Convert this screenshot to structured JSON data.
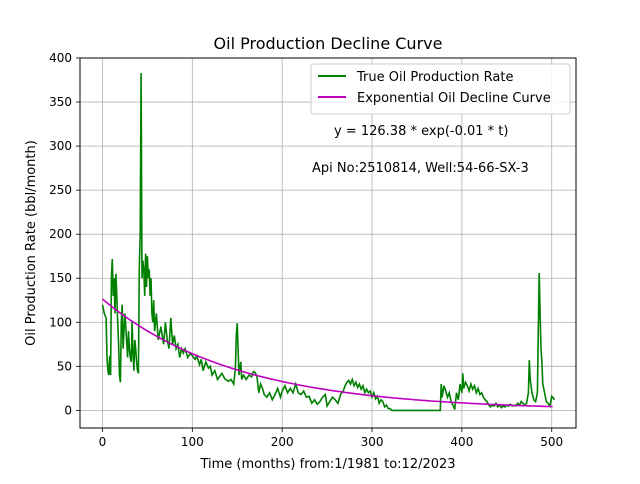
{
  "chart_data": {
    "type": "line",
    "title": "Oil Production Decline Curve",
    "xlabel": "Time (months) from:1/1981 to:12/2023",
    "ylabel": "Oil Production Rate (bbl/month)",
    "xlim": [
      -25,
      527
    ],
    "ylim": [
      -20,
      400
    ],
    "xticks": [
      0,
      100,
      200,
      300,
      400,
      500
    ],
    "yticks": [
      0,
      50,
      100,
      150,
      200,
      250,
      300,
      350,
      400
    ],
    "grid": true,
    "legend_position": "top-right",
    "annotations": {
      "equation": "y = 126.38 * exp(-0.01 * t)",
      "well_info": "Api No:2510814, Well:54-66-SX-3"
    },
    "series": [
      {
        "name": "True Oil Production Rate",
        "color": "#008000",
        "points": [
          [
            0,
            120
          ],
          [
            2,
            110
          ],
          [
            4,
            105
          ],
          [
            5,
            60
          ],
          [
            6,
            45
          ],
          [
            7,
            40
          ],
          [
            8,
            62
          ],
          [
            9,
            40
          ],
          [
            10,
            150
          ],
          [
            11,
            172
          ],
          [
            12,
            130
          ],
          [
            13,
            150
          ],
          [
            14,
            110
          ],
          [
            15,
            155
          ],
          [
            16,
            130
          ],
          [
            17,
            100
          ],
          [
            18,
            75
          ],
          [
            19,
            40
          ],
          [
            20,
            32
          ],
          [
            21,
            100
          ],
          [
            22,
            120
          ],
          [
            23,
            70
          ],
          [
            25,
            110
          ],
          [
            26,
            95
          ],
          [
            28,
            60
          ],
          [
            29,
            90
          ],
          [
            30,
            70
          ],
          [
            31,
            60
          ],
          [
            32,
            55
          ],
          [
            33,
            100
          ],
          [
            34,
            65
          ],
          [
            35,
            45
          ],
          [
            36,
            80
          ],
          [
            37,
            70
          ],
          [
            38,
            55
          ],
          [
            39,
            45
          ],
          [
            40,
            42
          ],
          [
            41,
            160
          ],
          [
            42,
            200
          ],
          [
            43,
            383
          ],
          [
            44,
            150
          ],
          [
            45,
            170
          ],
          [
            46,
            160
          ],
          [
            47,
            130
          ],
          [
            48,
            178
          ],
          [
            49,
            140
          ],
          [
            50,
            175
          ],
          [
            51,
            150
          ],
          [
            52,
            160
          ],
          [
            53,
            130
          ],
          [
            54,
            150
          ],
          [
            55,
            110
          ],
          [
            56,
            100
          ],
          [
            57,
            125
          ],
          [
            58,
            90
          ],
          [
            60,
            110
          ],
          [
            62,
            80
          ],
          [
            65,
            95
          ],
          [
            68,
            75
          ],
          [
            70,
            100
          ],
          [
            72,
            80
          ],
          [
            74,
            70
          ],
          [
            76,
            105
          ],
          [
            78,
            75
          ],
          [
            80,
            85
          ],
          [
            82,
            70
          ],
          [
            84,
            75
          ],
          [
            86,
            60
          ],
          [
            88,
            70
          ],
          [
            90,
            65
          ],
          [
            92,
            70
          ],
          [
            95,
            60
          ],
          [
            98,
            65
          ],
          [
            100,
            62
          ],
          [
            103,
            58
          ],
          [
            105,
            62
          ],
          [
            108,
            52
          ],
          [
            110,
            58
          ],
          [
            112,
            45
          ],
          [
            115,
            55
          ],
          [
            118,
            48
          ],
          [
            120,
            50
          ],
          [
            122,
            40
          ],
          [
            125,
            45
          ],
          [
            128,
            35
          ],
          [
            130,
            38
          ],
          [
            133,
            42
          ],
          [
            136,
            36
          ],
          [
            140,
            33
          ],
          [
            143,
            35
          ],
          [
            146,
            30
          ],
          [
            148,
            48
          ],
          [
            149,
            85
          ],
          [
            150,
            99
          ],
          [
            152,
            40
          ],
          [
            154,
            55
          ],
          [
            155,
            35
          ],
          [
            157,
            40
          ],
          [
            160,
            35
          ],
          [
            163,
            40
          ],
          [
            166,
            38
          ],
          [
            168,
            44
          ],
          [
            170,
            43
          ],
          [
            172,
            38
          ],
          [
            174,
            20
          ],
          [
            176,
            30
          ],
          [
            178,
            25
          ],
          [
            180,
            18
          ],
          [
            183,
            15
          ],
          [
            186,
            20
          ],
          [
            189,
            12
          ],
          [
            192,
            18
          ],
          [
            195,
            25
          ],
          [
            198,
            15
          ],
          [
            200,
            22
          ],
          [
            203,
            28
          ],
          [
            206,
            20
          ],
          [
            209,
            25
          ],
          [
            212,
            20
          ],
          [
            215,
            30
          ],
          [
            218,
            20
          ],
          [
            221,
            18
          ],
          [
            224,
            22
          ],
          [
            227,
            15
          ],
          [
            230,
            16
          ],
          [
            233,
            8
          ],
          [
            236,
            12
          ],
          [
            239,
            7
          ],
          [
            242,
            10
          ],
          [
            245,
            15
          ],
          [
            248,
            18
          ],
          [
            250,
            5
          ],
          [
            253,
            10
          ],
          [
            256,
            15
          ],
          [
            259,
            12
          ],
          [
            262,
            8
          ],
          [
            265,
            18
          ],
          [
            268,
            22
          ],
          [
            270,
            28
          ],
          [
            272,
            32
          ],
          [
            274,
            34
          ],
          [
            276,
            30
          ],
          [
            278,
            35
          ],
          [
            280,
            28
          ],
          [
            282,
            32
          ],
          [
            284,
            26
          ],
          [
            286,
            30
          ],
          [
            288,
            24
          ],
          [
            290,
            28
          ],
          [
            292,
            20
          ],
          [
            294,
            24
          ],
          [
            296,
            20
          ],
          [
            298,
            22
          ],
          [
            300,
            15
          ],
          [
            302,
            20
          ],
          [
            304,
            13
          ],
          [
            306,
            16
          ],
          [
            308,
            8
          ],
          [
            310,
            12
          ],
          [
            312,
            10
          ],
          [
            314,
            4
          ],
          [
            316,
            6
          ],
          [
            318,
            2
          ],
          [
            320,
            2
          ],
          [
            322,
            0
          ],
          [
            330,
            0
          ],
          [
            340,
            0
          ],
          [
            350,
            0
          ],
          [
            360,
            0
          ],
          [
            370,
            0
          ],
          [
            376,
            0
          ],
          [
            377,
            30
          ],
          [
            378,
            15
          ],
          [
            380,
            28
          ],
          [
            382,
            22
          ],
          [
            384,
            15
          ],
          [
            386,
            20
          ],
          [
            388,
            10
          ],
          [
            390,
            6
          ],
          [
            392,
            1
          ],
          [
            394,
            20
          ],
          [
            396,
            12
          ],
          [
            398,
            30
          ],
          [
            400,
            20
          ],
          [
            401,
            42
          ],
          [
            402,
            25
          ],
          [
            404,
            32
          ],
          [
            406,
            28
          ],
          [
            408,
            22
          ],
          [
            410,
            30
          ],
          [
            412,
            24
          ],
          [
            414,
            28
          ],
          [
            416,
            20
          ],
          [
            418,
            25
          ],
          [
            420,
            18
          ],
          [
            422,
            20
          ],
          [
            424,
            15
          ],
          [
            426,
            12
          ],
          [
            428,
            10
          ],
          [
            430,
            6
          ],
          [
            432,
            4
          ],
          [
            434,
            6
          ],
          [
            436,
            5
          ],
          [
            438,
            8
          ],
          [
            440,
            4
          ],
          [
            442,
            6
          ],
          [
            444,
            3
          ],
          [
            446,
            5
          ],
          [
            448,
            4
          ],
          [
            450,
            6
          ],
          [
            452,
            5
          ],
          [
            454,
            7
          ],
          [
            456,
            5
          ],
          [
            458,
            6
          ],
          [
            460,
            5
          ],
          [
            462,
            8
          ],
          [
            464,
            6
          ],
          [
            466,
            10
          ],
          [
            468,
            8
          ],
          [
            470,
            6
          ],
          [
            472,
            8
          ],
          [
            474,
            20
          ],
          [
            475,
            57
          ],
          [
            476,
            35
          ],
          [
            478,
            20
          ],
          [
            480,
            12
          ],
          [
            482,
            10
          ],
          [
            484,
            20
          ],
          [
            485,
            90
          ],
          [
            486,
            156
          ],
          [
            487,
            110
          ],
          [
            488,
            70
          ],
          [
            489,
            55
          ],
          [
            490,
            30
          ],
          [
            492,
            20
          ],
          [
            494,
            10
          ],
          [
            496,
            8
          ],
          [
            498,
            5
          ],
          [
            499,
            10
          ],
          [
            500,
            16
          ],
          [
            502,
            14
          ],
          [
            503,
            12
          ]
        ]
      },
      {
        "name": "Exponential Oil Decline Curve",
        "color": "#bf00bf",
        "model": {
          "a": 126.38,
          "b": 0.00675,
          "t_min": 0,
          "t_max": 503
        }
      }
    ]
  }
}
